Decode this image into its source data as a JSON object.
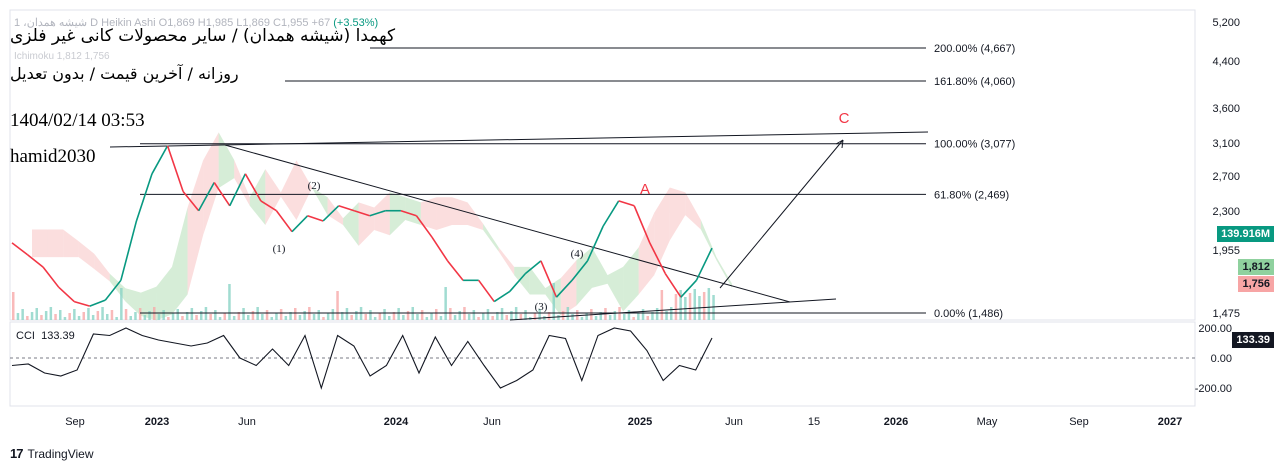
{
  "header": {
    "line": "1 ،شیشه همدان D Heikin Ashi O1,869 H1,985 L1,869 C1,955 +67",
    "change": "(+3.53%)",
    "ichimoku": "Ichimoku 1,812 1,756"
  },
  "annotations": {
    "title_fa": "کهمدا (شیشه همدان) / سایر محصولات کانی غیر فلزی",
    "subtitle_fa": "روزانه / آخرین قیمت / بدون تعدیل",
    "timestamp": "1404/02/14 03:53",
    "author": "hamid2030"
  },
  "fib_levels": [
    {
      "label": "200.00% (4,667)",
      "price": 4667
    },
    {
      "label": "161.80% (4,060)",
      "price": 4060
    },
    {
      "label": "100.00% (3,077)",
      "price": 3077
    },
    {
      "label": "61.80% (2,469)",
      "price": 2469
    },
    {
      "label": "0.00% (1,486)",
      "price": 1486
    }
  ],
  "wave_labels": [
    "(1)",
    "(2)",
    "(3)",
    "(4)"
  ],
  "abc_labels": {
    "a": "A",
    "c": "C"
  },
  "price_axis": {
    "ticks": [
      "5,200",
      "4,400",
      "3,600",
      "3,100",
      "2,700",
      "2,300",
      "1,955",
      "1,475"
    ],
    "tick_values": [
      5200,
      4400,
      3600,
      3100,
      2700,
      2300,
      1955,
      1475
    ],
    "tag_volume": "139.916M",
    "tag_tenkan": "1,812",
    "tag_kijun": "1,756"
  },
  "time_axis": {
    "labels": [
      "Sep",
      "2023",
      "Jun",
      "2024",
      "Jun",
      "2025",
      "Jun",
      "15",
      "2026",
      "May",
      "Sep",
      "2027"
    ],
    "bold": [
      false,
      true,
      false,
      true,
      false,
      true,
      false,
      false,
      true,
      false,
      false,
      true
    ]
  },
  "cci": {
    "label": "CCI",
    "value": "133.39",
    "ticks": [
      "200.00",
      "0.00",
      "-200.00"
    ],
    "tick_values": [
      200,
      0,
      -200
    ]
  },
  "brand": "TradingView",
  "colors": {
    "up": "#089981",
    "down": "#f23645",
    "cloud_up": "#a5d6a7",
    "cloud_down": "#f7b6b6",
    "abc": "#f23645",
    "volume_tag": "#089981",
    "tenkan_tag": "#8fd19e",
    "kijun_tag": "#f7a5a5"
  },
  "chart_data": {
    "type": "line",
    "title": "کهمدا (شیشه همدان)",
    "timeframe": "daily",
    "ohlc_last": {
      "open": 1869,
      "high": 1985,
      "low": 1869,
      "close": 1955,
      "change": 67,
      "change_pct": 3.53
    },
    "price_scale": "log",
    "ylim": [
      1400,
      5500
    ],
    "series": [
      {
        "values": [
          2000,
          1900,
          1800,
          1650,
          1550,
          1520,
          1560,
          1700,
          2200,
          2700,
          3050,
          2500,
          2300,
          2600,
          2350,
          2700,
          2400,
          2300,
          2100,
          2250,
          2200,
          2350,
          2300,
          2250,
          2300,
          2300,
          2250,
          2050,
          1850,
          1700,
          1700,
          1550,
          1620,
          1750,
          1850,
          1580,
          1700,
          1850,
          2150,
          2400,
          2350,
          2000,
          1750,
          1580,
          1700,
          1955
        ]
      }
    ],
    "key_points": [
      {
        "label": "(1)",
        "price": 2050
      },
      {
        "label": "(2)",
        "price": 2650
      },
      {
        "label": "(3)",
        "price": 1580
      },
      {
        "label": "(4)",
        "price": 1850
      },
      {
        "label": "A",
        "price": 2400
      },
      {
        "label": "C",
        "price": 3200
      }
    ],
    "cci": [
      -50,
      -40,
      -100,
      -120,
      -80,
      160,
      150,
      200,
      150,
      120,
      100,
      80,
      100,
      150,
      0,
      -50,
      60,
      -50,
      150,
      -200,
      150,
      80,
      -120,
      -50,
      150,
      -100,
      140,
      -50,
      110,
      -50,
      -200,
      -150,
      -80,
      150,
      130,
      -150,
      150,
      200,
      180,
      50,
      -150,
      -50,
      -80,
      133.39
    ]
  }
}
